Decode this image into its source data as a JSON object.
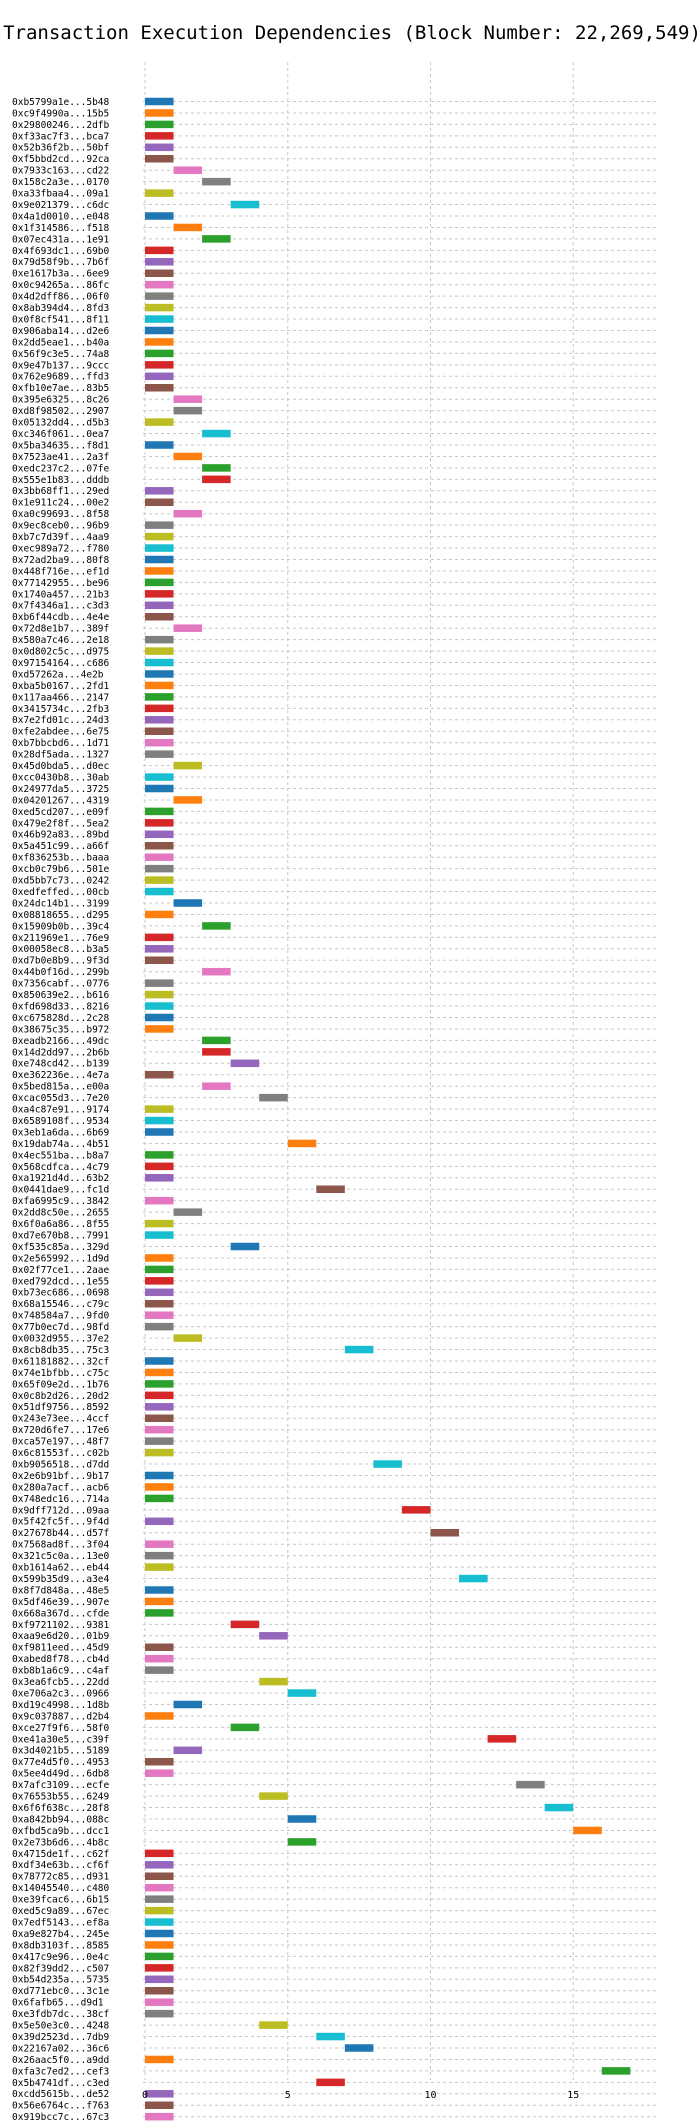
{
  "chart_data": {
    "type": "bar",
    "orientation": "horizontal",
    "title": "Transaction Execution Dependencies (Block Number: 22,269,549)",
    "xlabel": "",
    "ylabel": "",
    "xlim": [
      0,
      18
    ],
    "xticks": [
      0,
      5,
      10,
      15
    ],
    "grid": true,
    "palette": [
      "#1f77b4",
      "#ff7f0e",
      "#2ca02c",
      "#d62728",
      "#9467bd",
      "#8c564b",
      "#e377c2",
      "#7f7f7f",
      "#bcbd22",
      "#17becf"
    ],
    "transactions": [
      {
        "label": "0xb5799a1e...5b48",
        "start": 0,
        "end": 1
      },
      {
        "label": "0xc9f4990a...15b5",
        "start": 0,
        "end": 1
      },
      {
        "label": "0x29800246...2dfb",
        "start": 0,
        "end": 1
      },
      {
        "label": "0xf33ac7f3...bca7",
        "start": 0,
        "end": 1
      },
      {
        "label": "0x52b36f2b...50bf",
        "start": 0,
        "end": 1
      },
      {
        "label": "0xf5bbd2cd...92ca",
        "start": 0,
        "end": 1
      },
      {
        "label": "0x7933c163...cd22",
        "start": 1,
        "end": 2
      },
      {
        "label": "0x158c2a3e...0170",
        "start": 2,
        "end": 3
      },
      {
        "label": "0xa33fbaa4...09a1",
        "start": 0,
        "end": 1
      },
      {
        "label": "0x9e021379...c6dc",
        "start": 3,
        "end": 4
      },
      {
        "label": "0x4a1d0010...e048",
        "start": 0,
        "end": 1
      },
      {
        "label": "0x1f314586...f518",
        "start": 1,
        "end": 2
      },
      {
        "label": "0x07ec431a...1e91",
        "start": 2,
        "end": 3
      },
      {
        "label": "0x4f693dc1...69b0",
        "start": 0,
        "end": 1
      },
      {
        "label": "0x79d58f9b...7b6f",
        "start": 0,
        "end": 1
      },
      {
        "label": "0xe1617b3a...6ee9",
        "start": 0,
        "end": 1
      },
      {
        "label": "0x0c94265a...86fc",
        "start": 0,
        "end": 1
      },
      {
        "label": "0x4d2dff86...06f0",
        "start": 0,
        "end": 1
      },
      {
        "label": "0x8ab394d4...8fd3",
        "start": 0,
        "end": 1
      },
      {
        "label": "0x0f8cf541...8f11",
        "start": 0,
        "end": 1
      },
      {
        "label": "0x906aba14...d2e6",
        "start": 0,
        "end": 1
      },
      {
        "label": "0x2dd5eae1...b40a",
        "start": 0,
        "end": 1
      },
      {
        "label": "0x56f9c3e5...74a8",
        "start": 0,
        "end": 1
      },
      {
        "label": "0x9e47b137...9ccc",
        "start": 0,
        "end": 1
      },
      {
        "label": "0x762e9689...ffd3",
        "start": 0,
        "end": 1
      },
      {
        "label": "0xfb10e7ae...83b5",
        "start": 0,
        "end": 1
      },
      {
        "label": "0x395e6325...8c26",
        "start": 1,
        "end": 2
      },
      {
        "label": "0xd8f98502...2907",
        "start": 1,
        "end": 2
      },
      {
        "label": "0x05132dd4...d5b3",
        "start": 0,
        "end": 1
      },
      {
        "label": "0xc346f061...0ea7",
        "start": 2,
        "end": 3
      },
      {
        "label": "0x5ba34635...f8d1",
        "start": 0,
        "end": 1
      },
      {
        "label": "0x7523ae41...2a3f",
        "start": 1,
        "end": 2
      },
      {
        "label": "0xedc237c2...07fe",
        "start": 2,
        "end": 3
      },
      {
        "label": "0x555e1b83...dddb",
        "start": 2,
        "end": 3
      },
      {
        "label": "0x3bb68ff1...29ed",
        "start": 0,
        "end": 1
      },
      {
        "label": "0x1e911c24...00e2",
        "start": 0,
        "end": 1
      },
      {
        "label": "0xa0c99693...8f58",
        "start": 1,
        "end": 2
      },
      {
        "label": "0x9ec8ceb0...96b9",
        "start": 0,
        "end": 1
      },
      {
        "label": "0xb7c7d39f...4aa9",
        "start": 0,
        "end": 1
      },
      {
        "label": "0xec989a72...f780",
        "start": 0,
        "end": 1
      },
      {
        "label": "0x72ad2ba9...80f8",
        "start": 0,
        "end": 1
      },
      {
        "label": "0x448f716e...ef1d",
        "start": 0,
        "end": 1
      },
      {
        "label": "0x77142955...be96",
        "start": 0,
        "end": 1
      },
      {
        "label": "0x1740a457...21b3",
        "start": 0,
        "end": 1
      },
      {
        "label": "0x7f4346a1...c3d3",
        "start": 0,
        "end": 1
      },
      {
        "label": "0xb6f44cdb...4e4e",
        "start": 0,
        "end": 1
      },
      {
        "label": "0x72d8e1b7...389f",
        "start": 1,
        "end": 2
      },
      {
        "label": "0x580a7c46...2e18",
        "start": 0,
        "end": 1
      },
      {
        "label": "0x0d802c5c...d975",
        "start": 0,
        "end": 1
      },
      {
        "label": "0x97154164...c686",
        "start": 0,
        "end": 1
      },
      {
        "label": "0xd57262a...4e2b",
        "start": 0,
        "end": 1
      },
      {
        "label": "0xba5b0167...2fd1",
        "start": 0,
        "end": 1
      },
      {
        "label": "0x117aa466...2147",
        "start": 0,
        "end": 1
      },
      {
        "label": "0x3415734c...2fb3",
        "start": 0,
        "end": 1
      },
      {
        "label": "0x7e2fd01c...24d3",
        "start": 0,
        "end": 1
      },
      {
        "label": "0xfe2abdee...6e75",
        "start": 0,
        "end": 1
      },
      {
        "label": "0xb7bbcbd6...1d71",
        "start": 0,
        "end": 1
      },
      {
        "label": "0x28df5ada...1327",
        "start": 0,
        "end": 1
      },
      {
        "label": "0x45d0bda5...d0ec",
        "start": 1,
        "end": 2
      },
      {
        "label": "0xcc0430b8...30ab",
        "start": 0,
        "end": 1
      },
      {
        "label": "0x24977da5...3725",
        "start": 0,
        "end": 1
      },
      {
        "label": "0x04201267...4319",
        "start": 1,
        "end": 2
      },
      {
        "label": "0xed5cd207...e09f",
        "start": 0,
        "end": 1
      },
      {
        "label": "0x479e2f8f...5ea2",
        "start": 0,
        "end": 1
      },
      {
        "label": "0x46b92a83...89bd",
        "start": 0,
        "end": 1
      },
      {
        "label": "0x5a451c99...a66f",
        "start": 0,
        "end": 1
      },
      {
        "label": "0xf836253b...baaa",
        "start": 0,
        "end": 1
      },
      {
        "label": "0xcb0c79b6...501e",
        "start": 0,
        "end": 1
      },
      {
        "label": "0xd5bb7c73...0242",
        "start": 0,
        "end": 1
      },
      {
        "label": "0xedfeffed...00cb",
        "start": 0,
        "end": 1
      },
      {
        "label": "0x24dc14b1...3199",
        "start": 1,
        "end": 2
      },
      {
        "label": "0x08818655...d295",
        "start": 0,
        "end": 1
      },
      {
        "label": "0x15909b0b...39c4",
        "start": 2,
        "end": 3
      },
      {
        "label": "0x211969e1...76e9",
        "start": 0,
        "end": 1
      },
      {
        "label": "0x00058ec8...b3a5",
        "start": 0,
        "end": 1
      },
      {
        "label": "0xd7b0e8b9...9f3d",
        "start": 0,
        "end": 1
      },
      {
        "label": "0x44b0f16d...299b",
        "start": 2,
        "end": 3
      },
      {
        "label": "0x7356cabf...0776",
        "start": 0,
        "end": 1
      },
      {
        "label": "0x850639e2...b616",
        "start": 0,
        "end": 1
      },
      {
        "label": "0xfd698d33...8216",
        "start": 0,
        "end": 1
      },
      {
        "label": "0xc675828d...2c28",
        "start": 0,
        "end": 1
      },
      {
        "label": "0x38675c35...b972",
        "start": 0,
        "end": 1
      },
      {
        "label": "0xeadb2166...49dc",
        "start": 2,
        "end": 3
      },
      {
        "label": "0x14d2dd97...2b6b",
        "start": 2,
        "end": 3
      },
      {
        "label": "0xe748cd42...b139",
        "start": 3,
        "end": 4
      },
      {
        "label": "0xe362236e...4e7a",
        "start": 0,
        "end": 1
      },
      {
        "label": "0x5bed815a...e00a",
        "start": 2,
        "end": 3
      },
      {
        "label": "0xcac055d3...7e20",
        "start": 4,
        "end": 5
      },
      {
        "label": "0xa4c87e91...9174",
        "start": 0,
        "end": 1
      },
      {
        "label": "0x6589108f...9534",
        "start": 0,
        "end": 1
      },
      {
        "label": "0x3eb1a6da...6b69",
        "start": 0,
        "end": 1
      },
      {
        "label": "0x19dab74a...4b51",
        "start": 5,
        "end": 6
      },
      {
        "label": "0x4ec551ba...b8a7",
        "start": 0,
        "end": 1
      },
      {
        "label": "0x568cdfca...4c79",
        "start": 0,
        "end": 1
      },
      {
        "label": "0xa1921d4d...63b2",
        "start": 0,
        "end": 1
      },
      {
        "label": "0x0441dae9...fc1d",
        "start": 6,
        "end": 7
      },
      {
        "label": "0xfa6995c9...3842",
        "start": 0,
        "end": 1
      },
      {
        "label": "0x2dd8c50e...2655",
        "start": 1,
        "end": 2
      },
      {
        "label": "0x6f0a6a86...8f55",
        "start": 0,
        "end": 1
      },
      {
        "label": "0xd7e670b8...7991",
        "start": 0,
        "end": 1
      },
      {
        "label": "0xf535c85a...329d",
        "start": 3,
        "end": 4
      },
      {
        "label": "0x2e565992...1d9d",
        "start": 0,
        "end": 1
      },
      {
        "label": "0x02f77ce1...2aae",
        "start": 0,
        "end": 1
      },
      {
        "label": "0xed792dcd...1e55",
        "start": 0,
        "end": 1
      },
      {
        "label": "0xb73ec686...0698",
        "start": 0,
        "end": 1
      },
      {
        "label": "0x68a15546...c79c",
        "start": 0,
        "end": 1
      },
      {
        "label": "0x748584a7...9fd0",
        "start": 0,
        "end": 1
      },
      {
        "label": "0x77b0ec7d...98fd",
        "start": 0,
        "end": 1
      },
      {
        "label": "0x0032d955...37e2",
        "start": 1,
        "end": 2
      },
      {
        "label": "0x8cb8db35...75c3",
        "start": 7,
        "end": 8
      },
      {
        "label": "0x61181882...32cf",
        "start": 0,
        "end": 1
      },
      {
        "label": "0x74e1bfbb...c75c",
        "start": 0,
        "end": 1
      },
      {
        "label": "0x65f09e2d...1b76",
        "start": 0,
        "end": 1
      },
      {
        "label": "0x0c8b2d26...20d2",
        "start": 0,
        "end": 1
      },
      {
        "label": "0x51df9756...8592",
        "start": 0,
        "end": 1
      },
      {
        "label": "0x243e73ee...4ccf",
        "start": 0,
        "end": 1
      },
      {
        "label": "0x720d6fe7...17e6",
        "start": 0,
        "end": 1
      },
      {
        "label": "0xca57e197...48f7",
        "start": 0,
        "end": 1
      },
      {
        "label": "0x6c81553f...c02b",
        "start": 0,
        "end": 1
      },
      {
        "label": "0xb9056518...d7dd",
        "start": 8,
        "end": 9
      },
      {
        "label": "0x2e6b91bf...9b17",
        "start": 0,
        "end": 1
      },
      {
        "label": "0x280a7acf...acb6",
        "start": 0,
        "end": 1
      },
      {
        "label": "0x748edc16...714a",
        "start": 0,
        "end": 1
      },
      {
        "label": "0x9dff712d...09aa",
        "start": 9,
        "end": 10
      },
      {
        "label": "0x5f42fc5f...9f4d",
        "start": 0,
        "end": 1
      },
      {
        "label": "0x27678b44...d57f",
        "start": 10,
        "end": 11
      },
      {
        "label": "0x7568ad8f...3f04",
        "start": 0,
        "end": 1
      },
      {
        "label": "0x321c5c0a...13e0",
        "start": 0,
        "end": 1
      },
      {
        "label": "0xb1614a62...eb44",
        "start": 0,
        "end": 1
      },
      {
        "label": "0x599b35d9...a3e4",
        "start": 11,
        "end": 12
      },
      {
        "label": "0x8f7d848a...48e5",
        "start": 0,
        "end": 1
      },
      {
        "label": "0x5df46e39...907e",
        "start": 0,
        "end": 1
      },
      {
        "label": "0x668a367d...cfde",
        "start": 0,
        "end": 1
      },
      {
        "label": "0xf9721102...9381",
        "start": 3,
        "end": 4
      },
      {
        "label": "0xaa9e6d20...01b9",
        "start": 4,
        "end": 5
      },
      {
        "label": "0xf9811eed...45d9",
        "start": 0,
        "end": 1
      },
      {
        "label": "0xabed8f78...cb4d",
        "start": 0,
        "end": 1
      },
      {
        "label": "0xb8b1a6c9...c4af",
        "start": 0,
        "end": 1
      },
      {
        "label": "0x3ea6fcb5...22dd",
        "start": 4,
        "end": 5
      },
      {
        "label": "0xe706a2c3...0966",
        "start": 5,
        "end": 6
      },
      {
        "label": "0xd19c4998...1d8b",
        "start": 1,
        "end": 2
      },
      {
        "label": "0x9c037887...d2b4",
        "start": 0,
        "end": 1
      },
      {
        "label": "0xce27f9f6...58f0",
        "start": 3,
        "end": 4
      },
      {
        "label": "0xe41a30e5...c39f",
        "start": 12,
        "end": 13
      },
      {
        "label": "0x3d4021b5...5189",
        "start": 1,
        "end": 2
      },
      {
        "label": "0x77e4d5f0...4953",
        "start": 0,
        "end": 1
      },
      {
        "label": "0x5ee4d49d...6db8",
        "start": 0,
        "end": 1
      },
      {
        "label": "0x7afc3109...ecfe",
        "start": 13,
        "end": 14
      },
      {
        "label": "0x76553b55...6249",
        "start": 4,
        "end": 5
      },
      {
        "label": "0x6f6f638c...28f8",
        "start": 14,
        "end": 15
      },
      {
        "label": "0xa842bb94...088c",
        "start": 5,
        "end": 6
      },
      {
        "label": "0xfbd5ca9b...dcc1",
        "start": 15,
        "end": 16
      },
      {
        "label": "0x2e73b6d6...4b8c",
        "start": 5,
        "end": 6
      },
      {
        "label": "0x4715de1f...c62f",
        "start": 0,
        "end": 1
      },
      {
        "label": "0xdf34e63b...cf6f",
        "start": 0,
        "end": 1
      },
      {
        "label": "0x78772c85...d931",
        "start": 0,
        "end": 1
      },
      {
        "label": "0x14045540...c480",
        "start": 0,
        "end": 1
      },
      {
        "label": "0xe39fcac6...6b15",
        "start": 0,
        "end": 1
      },
      {
        "label": "0xed5c9a89...67ec",
        "start": 0,
        "end": 1
      },
      {
        "label": "0x7edf5143...ef8a",
        "start": 0,
        "end": 1
      },
      {
        "label": "0xa9e827b4...245e",
        "start": 0,
        "end": 1
      },
      {
        "label": "0x8db3103f...8585",
        "start": 0,
        "end": 1
      },
      {
        "label": "0x417c9e96...0e4c",
        "start": 0,
        "end": 1
      },
      {
        "label": "0x82f39dd2...c507",
        "start": 0,
        "end": 1
      },
      {
        "label": "0xb54d235a...5735",
        "start": 0,
        "end": 1
      },
      {
        "label": "0xd771ebc0...3c1e",
        "start": 0,
        "end": 1
      },
      {
        "label": "0x6fafb65...d9d1",
        "start": 0,
        "end": 1
      },
      {
        "label": "0xe3fdb7dc...38cf",
        "start": 0,
        "end": 1
      },
      {
        "label": "0x5e50e3c0...4248",
        "start": 4,
        "end": 5
      },
      {
        "label": "0x39d2523d...7db9",
        "start": 6,
        "end": 7
      },
      {
        "label": "0x22167a02...36c6",
        "start": 7,
        "end": 8
      },
      {
        "label": "0x26aac5f0...a9dd",
        "start": 0,
        "end": 1
      },
      {
        "label": "0xfa3c7ed2...cef3",
        "start": 16,
        "end": 17
      },
      {
        "label": "0x5b4741df...c3ed",
        "start": 6,
        "end": 7
      },
      {
        "label": "0xcdd5615b...de52",
        "start": 0,
        "end": 1
      },
      {
        "label": "0x56e6764c...f763",
        "start": 0,
        "end": 1
      },
      {
        "label": "0x919bcc7c...67c3",
        "start": 0,
        "end": 1
      }
    ]
  }
}
